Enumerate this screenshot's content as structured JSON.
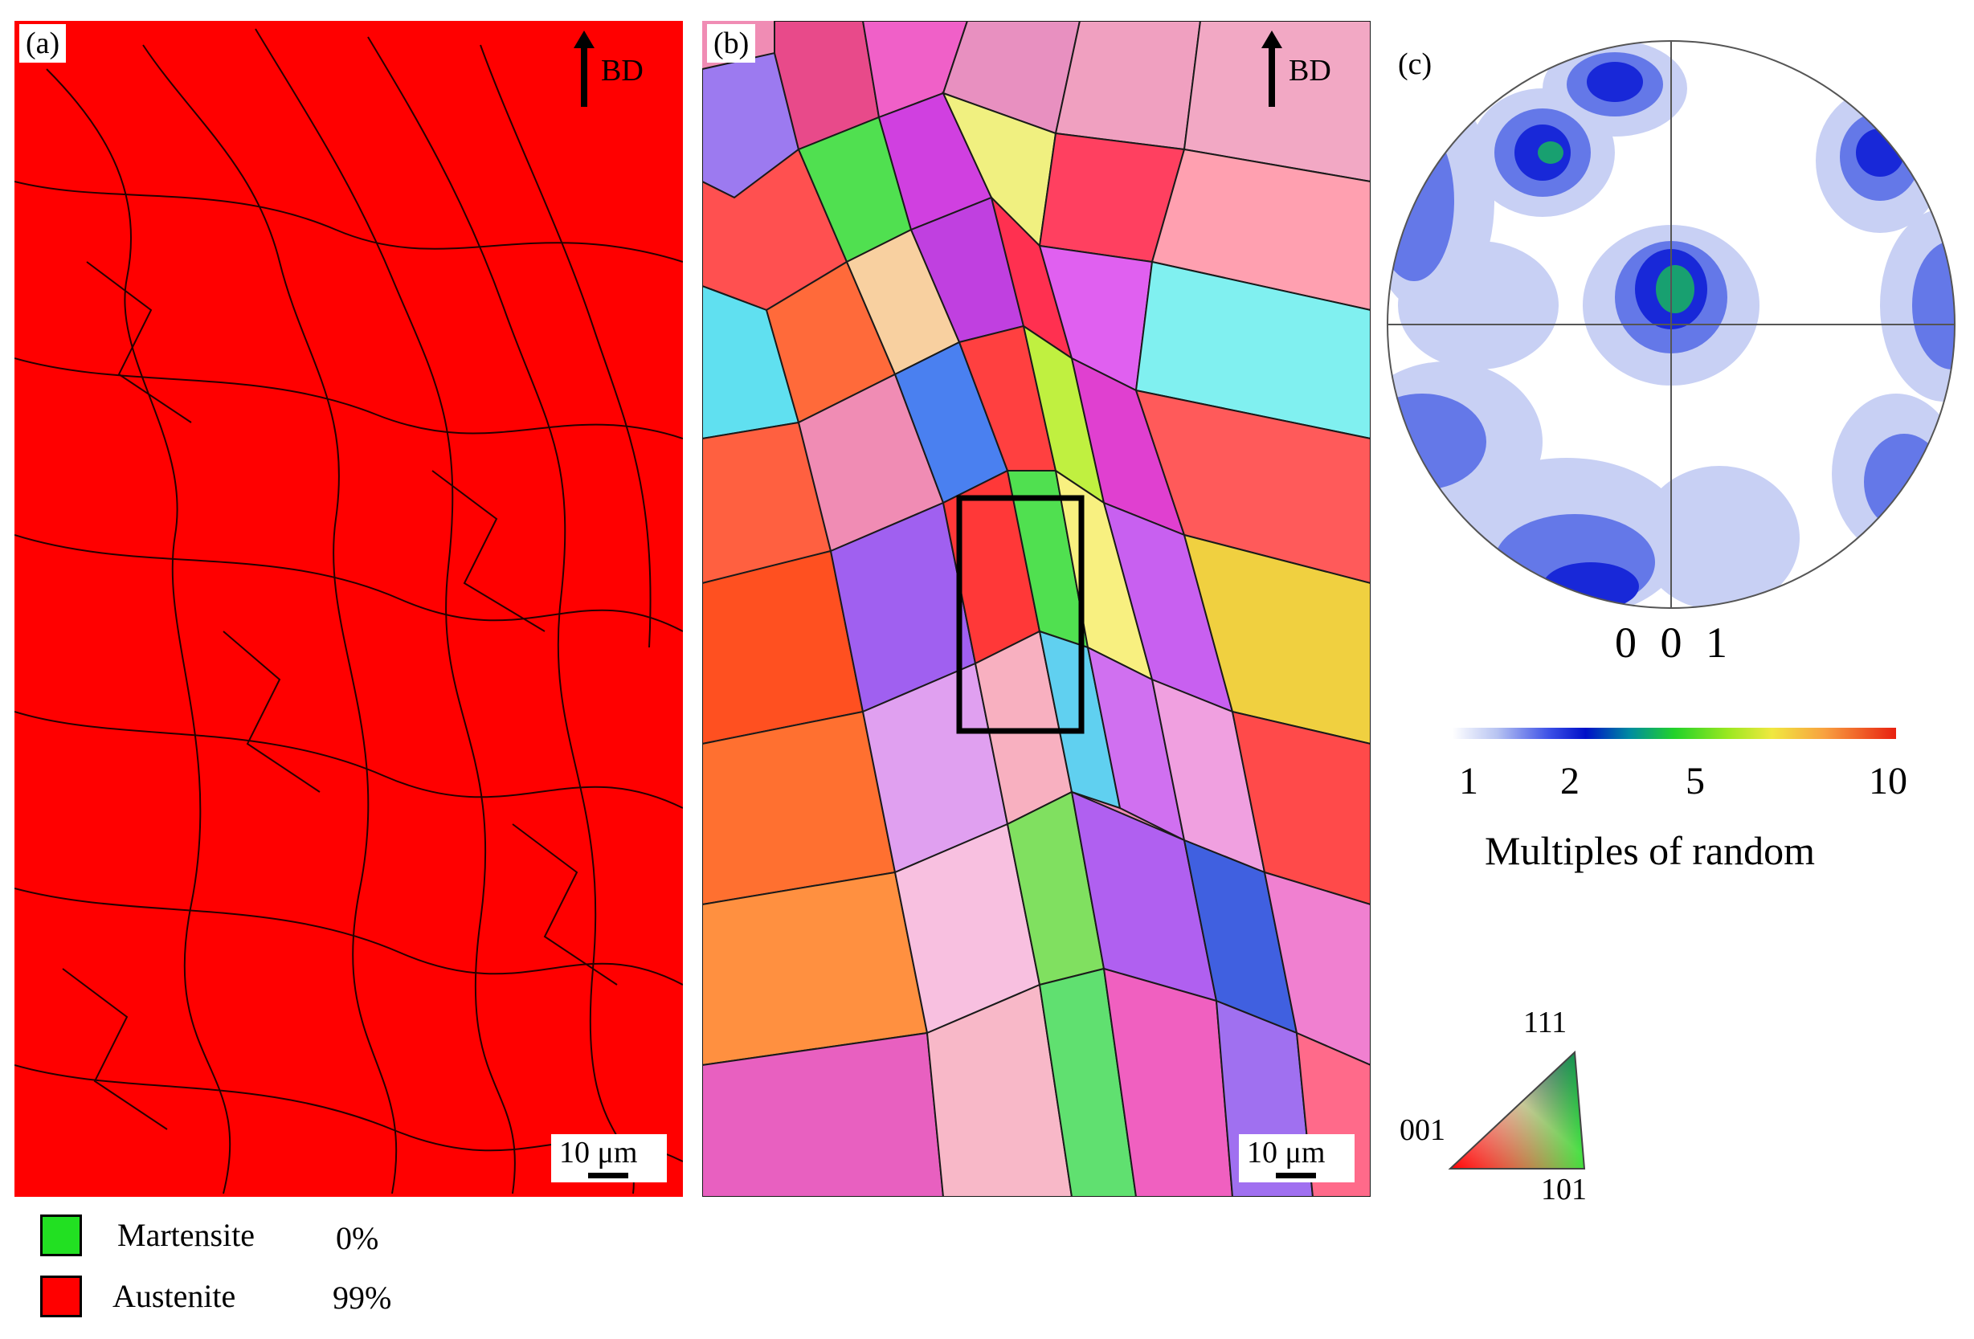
{
  "panels": {
    "a": {
      "label": "(a)",
      "direction_label": "BD",
      "scalebar_label": "10 μm",
      "fill_color": "#ff0000"
    },
    "b": {
      "label": "(b)",
      "direction_label": "BD",
      "scalebar_label": "10 μm"
    },
    "c": {
      "label": "(c)",
      "pole_figure_label": "0 0 1"
    }
  },
  "colorbar": {
    "ticks": [
      "1",
      "2",
      "5",
      "10"
    ],
    "title": "Multiples of random"
  },
  "ipf_legend": {
    "corner_111": "111",
    "corner_001": "001",
    "corner_101": "101"
  },
  "phase_legend": [
    {
      "name": "Martensite",
      "value": "0%",
      "color": "#22e022"
    },
    {
      "name": "Austenite",
      "value": "99%",
      "color": "#ff0000"
    }
  ]
}
